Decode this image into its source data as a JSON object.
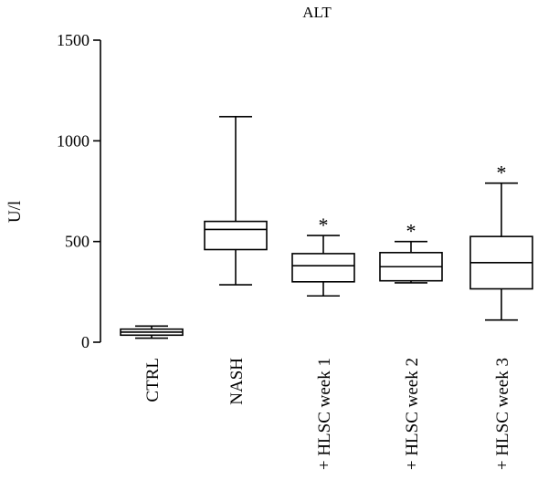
{
  "chart_data": {
    "type": "box",
    "title": "ALT",
    "ylabel": "U/l",
    "xlabel": "",
    "ylim": [
      0,
      1500
    ],
    "yticks": [
      0,
      500,
      1000,
      1500
    ],
    "grid": false,
    "categories": [
      "CTRL",
      "NASH",
      "+ HLSC week 1",
      "+ HLSC week 2",
      "+ HLSC week 3"
    ],
    "boxes": [
      {
        "category": "CTRL",
        "min": 20,
        "q1": 35,
        "median": 50,
        "q3": 65,
        "max": 80,
        "annotation": ""
      },
      {
        "category": "NASH",
        "min": 285,
        "q1": 460,
        "median": 560,
        "q3": 600,
        "max": 1120,
        "annotation": ""
      },
      {
        "category": "+ HLSC week 1",
        "min": 230,
        "q1": 300,
        "median": 380,
        "q3": 440,
        "max": 530,
        "annotation": "*"
      },
      {
        "category": "+ HLSC week 2",
        "min": 295,
        "q1": 305,
        "median": 375,
        "q3": 445,
        "max": 500,
        "annotation": "*"
      },
      {
        "category": "+ HLSC week 3",
        "min": 110,
        "q1": 265,
        "median": 395,
        "q3": 525,
        "max": 790,
        "annotation": "*"
      }
    ]
  }
}
